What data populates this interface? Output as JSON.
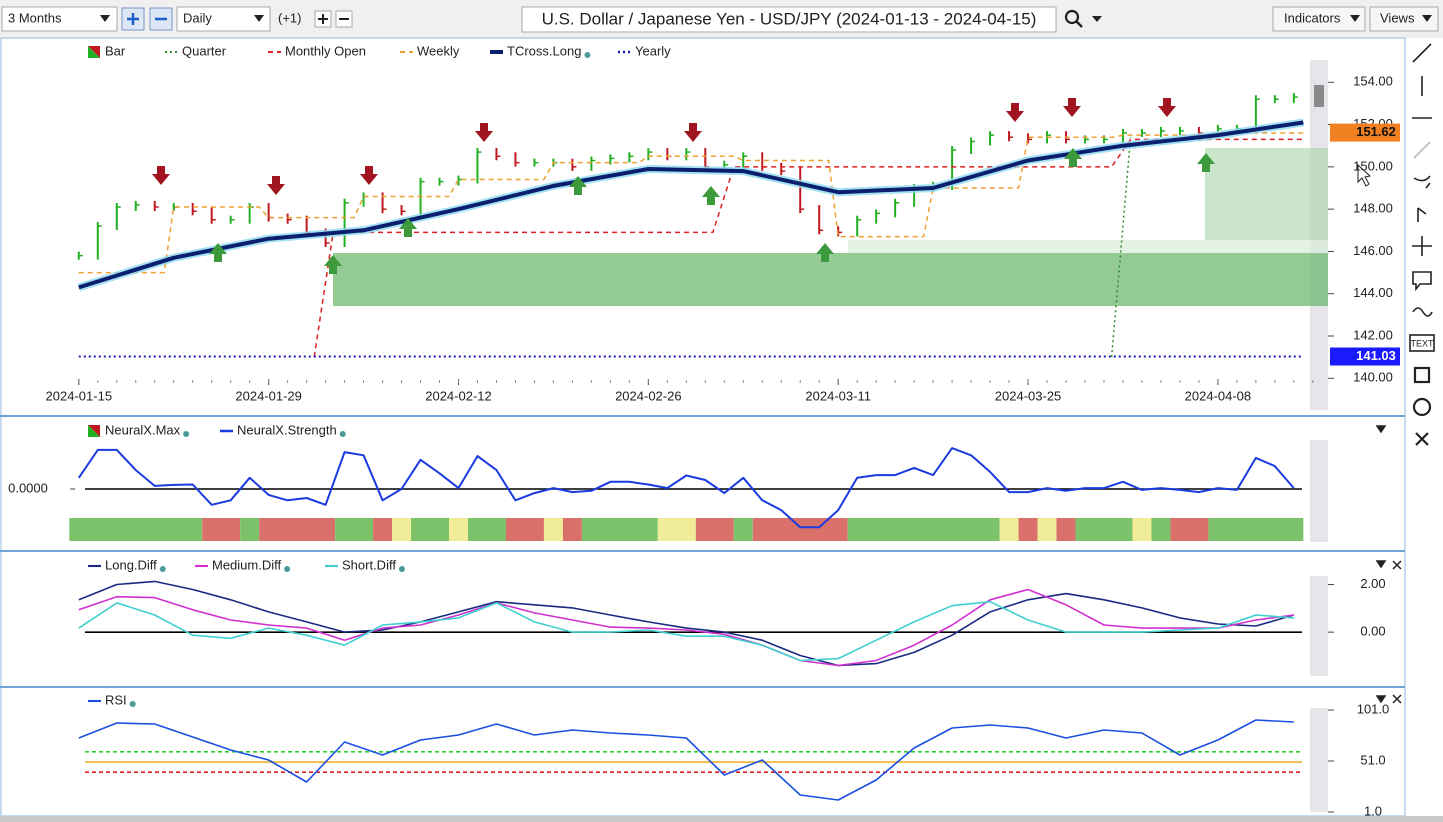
{
  "toolbar": {
    "range": "3 Months",
    "interval": "Daily",
    "offset": "(+1)",
    "title": "U.S. Dollar / Japanese Yen - USD/JPY (2024-01-13 - 2024-04-15)",
    "indicators": "Indicators",
    "views": "Views",
    "text_tool": "TEXT"
  },
  "chart_data": [
    {
      "type": "price",
      "ytick_side": "right",
      "xlim": [
        -0.2,
        65.8
      ],
      "ylim": [
        138.5,
        156
      ],
      "xticks": [
        {
          "value": 0,
          "label": "2024-01-15"
        },
        {
          "value": 10,
          "label": "2024-01-29"
        },
        {
          "value": 20,
          "label": "2024-02-12"
        },
        {
          "value": 30,
          "label": "2024-02-26"
        },
        {
          "value": 40,
          "label": "2024-03-11"
        },
        {
          "value": 50,
          "label": "2024-03-25"
        },
        {
          "value": 60,
          "label": "2024-04-08"
        }
      ],
      "yticks": [
        {
          "value": 140,
          "label": "140.00"
        },
        {
          "value": 142,
          "label": "142.00"
        },
        {
          "value": 144,
          "label": "144.00"
        },
        {
          "value": 146,
          "label": "146.00"
        },
        {
          "value": 148,
          "label": "148.00"
        },
        {
          "value": 150,
          "label": "150.00"
        },
        {
          "value": 152,
          "label": "152.00"
        },
        {
          "value": 154,
          "label": "154.00"
        }
      ],
      "series": [
        {
          "name": "Bar",
          "style": "bar",
          "colors": [
            "#22b022",
            "#c01820"
          ],
          "values": [
            145.8,
            147.2,
            148.1,
            148.2,
            148.1,
            148.1,
            147.9,
            147.5,
            147.5,
            148.1,
            147.6,
            147.5,
            146.9,
            146.4,
            148.3,
            148.6,
            148.0,
            147.9,
            149.3,
            149.3,
            149.4,
            150.7,
            150.5,
            150.2,
            150.2,
            150.2,
            150.0,
            150.3,
            150.4,
            150.5,
            150.7,
            150.5,
            150.7,
            150.0,
            150.1,
            150.5,
            150.0,
            149.8,
            148.0,
            147.0,
            146.9,
            147.5,
            147.8,
            148.3,
            149.0,
            149.1,
            150.8,
            151.2,
            151.5,
            151.4,
            151.3,
            151.5,
            151.3,
            151.3,
            151.3,
            151.6,
            151.6,
            151.7,
            151.7,
            151.6,
            151.8,
            151.8,
            153.2,
            153.2,
            153.3
          ]
        },
        {
          "name": "Quarter",
          "style": "dotted",
          "color": "#2e8b2e",
          "width": 1.5,
          "x": [
            54.4,
            55.4
          ],
          "values": [
            141.0,
            151.4
          ]
        },
        {
          "name": "Monthly Open",
          "style": "dashed",
          "color": "#e02020",
          "width": 1.5,
          "x": [
            12.4,
            13.4,
            33.4,
            34.5,
            54.4,
            55.4,
            64.5
          ],
          "values": [
            141.0,
            146.9,
            146.9,
            150.0,
            150.0,
            151.3,
            151.3
          ]
        },
        {
          "name": "Weekly",
          "style": "dashed",
          "color": "#f0a030",
          "width": 1.5,
          "x": [
            0,
            4.5,
            5,
            9.5,
            10,
            14.5,
            15,
            19.5,
            20,
            24.5,
            25,
            29.5,
            30,
            34.5,
            35,
            39.5,
            40,
            44.5,
            45,
            49.5,
            50,
            54.5,
            55,
            59.5,
            60,
            64.5
          ],
          "values": [
            145.0,
            145.0,
            148.1,
            148.1,
            147.6,
            147.6,
            148.6,
            148.6,
            149.4,
            149.4,
            150.2,
            150.2,
            150.5,
            150.5,
            150.3,
            150.3,
            146.7,
            146.7,
            149.0,
            149.0,
            151.4,
            151.4,
            151.5,
            151.5,
            151.6,
            151.6
          ]
        },
        {
          "name": "TCross.Long",
          "style": "solid",
          "color": "#0a1f6e",
          "halo": "#8fd8f0",
          "width": 4,
          "x": [
            0,
            5,
            10,
            15,
            20,
            25,
            30,
            35,
            40,
            45,
            50,
            55,
            60,
            64.5
          ],
          "values": [
            144.3,
            145.7,
            146.6,
            147.0,
            148.0,
            149.1,
            149.9,
            149.8,
            148.8,
            149.0,
            150.3,
            151.0,
            151.5,
            152.1
          ]
        },
        {
          "name": "Yearly",
          "style": "dotted",
          "color": "#1a1ab0",
          "width": 2,
          "x": [
            0,
            64.5
          ],
          "values": [
            141.03,
            141.03
          ]
        }
      ],
      "price_labels": [
        {
          "value": 151.62,
          "color": "#f08020",
          "text_color": "#111111"
        },
        {
          "value": 141.03,
          "color": "#1a1aff",
          "text_color": "#ffffff"
        }
      ]
    },
    {
      "type": "line",
      "ytick_side": "left",
      "zero_line": true,
      "ylim": [
        -1.2,
        1.2
      ],
      "yticks": [
        {
          "value": 0,
          "label": "0.0000"
        }
      ],
      "series": [
        {
          "name": "NeuralX.Max",
          "style": "segments",
          "colors": [
            "#22b022",
            "#c01820"
          ],
          "segments": [
            {
              "start": 0,
              "color": "#7cc26a"
            },
            {
              "start": 7,
              "color": "#d9706a"
            },
            {
              "start": 9,
              "color": "#7cc26a"
            },
            {
              "start": 10,
              "color": "#d9706a"
            },
            {
              "start": 14,
              "color": "#7cc26a"
            },
            {
              "start": 16,
              "color": "#d9706a"
            },
            {
              "start": 17,
              "color": "#f0ec9a"
            },
            {
              "start": 18,
              "color": "#7cc26a"
            },
            {
              "start": 20,
              "color": "#f0ec9a"
            },
            {
              "start": 21,
              "color": "#7cc26a"
            },
            {
              "start": 23,
              "color": "#d9706a"
            },
            {
              "start": 25,
              "color": "#f0ec9a"
            },
            {
              "start": 26,
              "color": "#d9706a"
            },
            {
              "start": 27,
              "color": "#7cc26a"
            },
            {
              "start": 31,
              "color": "#f0ec9a"
            },
            {
              "start": 33,
              "color": "#d9706a"
            },
            {
              "start": 35,
              "color": "#7cc26a"
            },
            {
              "start": 36,
              "color": "#d9706a"
            },
            {
              "start": 41,
              "color": "#7cc26a"
            },
            {
              "start": 49,
              "color": "#f0ec9a"
            },
            {
              "start": 50,
              "color": "#d9706a"
            },
            {
              "start": 51,
              "color": "#f0ec9a"
            },
            {
              "start": 52,
              "color": "#d9706a"
            },
            {
              "start": 53,
              "color": "#7cc26a"
            },
            {
              "start": 56,
              "color": "#f0ec9a"
            },
            {
              "start": 57,
              "color": "#7cc26a"
            },
            {
              "start": 58,
              "color": "#d9706a"
            },
            {
              "start": 60,
              "color": "#7cc26a"
            }
          ]
        },
        {
          "name": "NeuralX.Strength",
          "style": "solid",
          "color": "#1a3be0",
          "width": 2,
          "values": [
            0.25,
            0.87,
            0.87,
            0.42,
            0.07,
            0.09,
            0.1,
            -0.35,
            -0.25,
            0.25,
            -0.13,
            -0.25,
            -0.2,
            -0.35,
            0.82,
            0.75,
            -0.25,
            0,
            0.65,
            0.35,
            0.02,
            0.73,
            0.42,
            -0.25,
            -0.09,
            0.02,
            -0.07,
            -0.04,
            0.16,
            0.16,
            0.1,
            0.02,
            0.3,
            0.2,
            -0.09,
            0.25,
            -0.25,
            -0.47,
            -0.85,
            -0.85,
            -0.47,
            0.25,
            0.31,
            0.31,
            0.47,
            0.31,
            0.91,
            0.75,
            0.38,
            -0.07,
            -0.07,
            0.02,
            -0.04,
            0.02,
            0.02,
            0.16,
            -0.02,
            0.02,
            -0.02,
            -0.07,
            0.02,
            -0.02,
            0.69,
            0.51,
            0.02
          ]
        }
      ]
    },
    {
      "type": "line",
      "ytick_side": "right",
      "zero_line": true,
      "ylim": [
        -1.8,
        2.4
      ],
      "yticks": [
        {
          "value": 0,
          "label": "0.00"
        },
        {
          "value": 2,
          "label": "2.00"
        }
      ],
      "x": [
        0,
        2,
        4,
        6,
        8,
        10,
        12,
        14,
        16,
        18,
        20,
        22,
        24,
        26,
        28,
        30,
        32,
        34,
        36,
        38,
        40,
        42,
        44,
        46,
        48,
        50,
        52,
        54,
        56,
        58,
        60,
        62,
        64
      ],
      "series": [
        {
          "name": "Long.Diff",
          "style": "solid",
          "color": "#1a2a80",
          "width": 1.6,
          "values": [
            1.36,
            2.0,
            2.13,
            1.79,
            1.36,
            0.85,
            0.43,
            0,
            0.09,
            0.43,
            0.85,
            1.28,
            1.15,
            1.02,
            0.72,
            0.43,
            0.17,
            0,
            -0.34,
            -0.98,
            -1.4,
            -1.32,
            -0.85,
            -0.13,
            0.85,
            1.36,
            1.62,
            1.36,
            1.02,
            0.6,
            0.34,
            0.26,
            0.72
          ]
        },
        {
          "name": "Medium.Diff",
          "style": "solid",
          "color": "#d030d0",
          "width": 1.6,
          "values": [
            0.94,
            1.49,
            1.45,
            0.94,
            0.51,
            0.3,
            0.17,
            -0.34,
            0.17,
            0.3,
            0.72,
            1.23,
            0.81,
            0.51,
            0.21,
            0.17,
            0.09,
            -0.09,
            -0.55,
            -1.19,
            -1.4,
            -1.19,
            -0.55,
            0.3,
            1.36,
            1.79,
            1.15,
            0.3,
            0.17,
            0.17,
            0.17,
            0.51,
            0.72
          ]
        },
        {
          "name": "Short.Diff",
          "style": "solid",
          "color": "#40d0d0",
          "width": 1.6,
          "values": [
            0.17,
            1.23,
            0.72,
            -0.13,
            -0.26,
            0.17,
            -0.13,
            -0.55,
            0.3,
            0.43,
            0.6,
            1.23,
            0.43,
            0,
            0,
            0.09,
            -0.17,
            -0.17,
            -0.55,
            -1.19,
            -1.11,
            -0.34,
            0.43,
            1.11,
            1.28,
            0.51,
            0,
            0,
            0,
            0.09,
            0.17,
            0.72,
            0.6
          ]
        }
      ]
    },
    {
      "type": "line",
      "ytick_side": "right",
      "ylim": [
        1,
        101
      ],
      "yticks": [
        {
          "value": 1,
          "label": "1.0"
        },
        {
          "value": 51,
          "label": "51.0"
        },
        {
          "value": 101,
          "label": "101.0"
        }
      ],
      "levels": [
        {
          "value": 60,
          "color": "#30d030"
        },
        {
          "value": 50,
          "color": "#f0b030"
        },
        {
          "value": 40,
          "color": "#e02020"
        }
      ],
      "x": [
        0,
        2,
        4,
        6,
        8,
        10,
        12,
        14,
        16,
        18,
        20,
        22,
        24,
        26,
        28,
        30,
        32,
        34,
        36,
        38,
        40,
        42,
        44,
        46,
        48,
        50,
        52,
        54,
        56,
        58,
        60,
        62,
        64
      ],
      "series": [
        {
          "name": "RSI",
          "style": "solid",
          "color": "#1a50e0",
          "width": 1.6,
          "values": [
            73.5,
            88.3,
            87.3,
            74.5,
            61.8,
            52,
            30.4,
            69.6,
            56.9,
            71.6,
            76.5,
            87.3,
            76.5,
            81.4,
            78.5,
            76.5,
            73.5,
            37.3,
            52,
            17.7,
            12.8,
            32.4,
            63.7,
            83.4,
            86.3,
            83.4,
            73.5,
            81.4,
            78.5,
            56.9,
            71.6,
            91.2,
            89.2
          ]
        }
      ]
    }
  ]
}
